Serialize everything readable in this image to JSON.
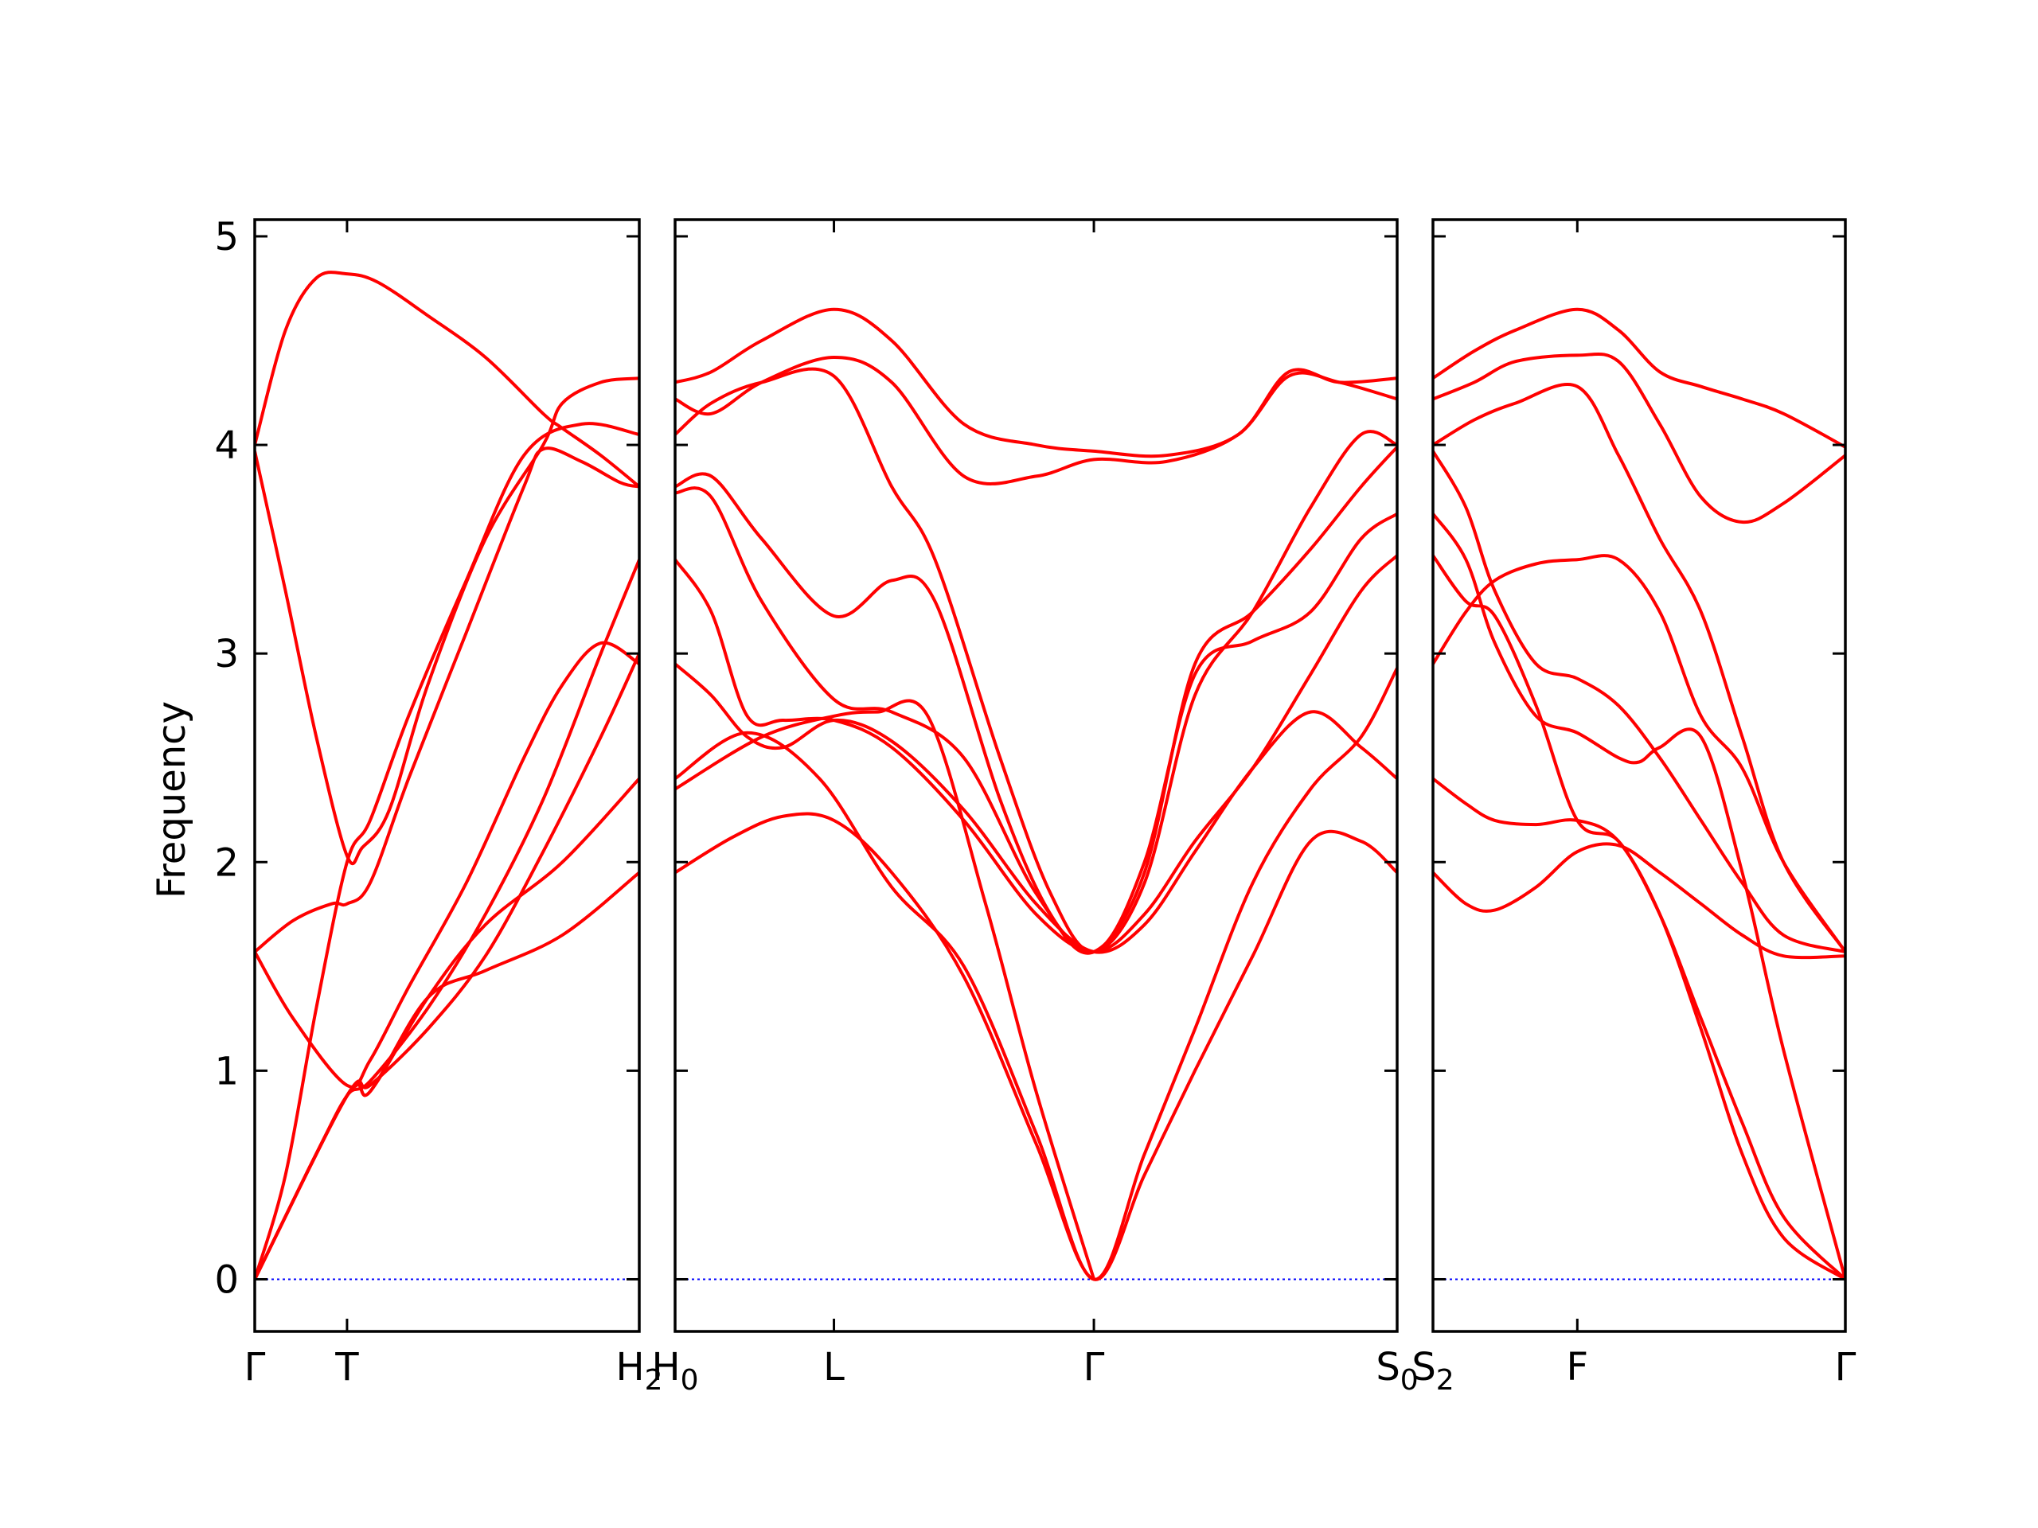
{
  "chart_data": {
    "type": "line",
    "ylabel": "Frequency",
    "ylim": [
      -0.25,
      5.08
    ],
    "yticks": [
      0,
      1,
      2,
      3,
      4,
      5
    ],
    "colors": {
      "bands": "#ff0000",
      "zero_line": "#0000ff",
      "axes": "#000000"
    },
    "grid": false,
    "panels": [
      {
        "xlim": [
          0,
          1
        ],
        "xticks": [
          {
            "x": 0.0,
            "label": "Γ"
          },
          {
            "x": 0.24,
            "label": "T"
          },
          {
            "x": 1.0,
            "label": "H",
            "sub": "2"
          }
        ],
        "series": [
          {
            "x": [
              0,
              0.08,
              0.16,
              0.24,
              0.32,
              0.45,
              0.6,
              0.75,
              0.8,
              0.9,
              1.0
            ],
            "y": [
              4.0,
              4.55,
              4.8,
              4.82,
              4.78,
              4.62,
              4.42,
              4.15,
              4.08,
              3.95,
              3.8
            ]
          },
          {
            "x": [
              0,
              0.08,
              0.16,
              0.24,
              0.28,
              0.35,
              0.45,
              0.6,
              0.75,
              0.8,
              0.9,
              1.0
            ],
            "y": [
              3.97,
              3.3,
              2.6,
              2.03,
              2.07,
              2.25,
              2.85,
              3.55,
              4.0,
              4.2,
              4.3,
              4.32
            ]
          },
          {
            "x": [
              0,
              0.1,
              0.2,
              0.24,
              0.3,
              0.4,
              0.55,
              0.7,
              0.75,
              0.85,
              0.95,
              1.0
            ],
            "y": [
              1.57,
              1.72,
              1.8,
              1.8,
              1.9,
              2.4,
              3.1,
              3.8,
              3.98,
              3.92,
              3.82,
              3.8
            ]
          },
          {
            "x": [
              0,
              0.1,
              0.24,
              0.3,
              0.4,
              0.55,
              0.7,
              0.8,
              0.9,
              1.0
            ],
            "y": [
              1.57,
              1.25,
              0.93,
              1.05,
              1.4,
              1.9,
              2.5,
              2.85,
              3.05,
              2.95
            ]
          },
          {
            "x": [
              0,
              0.08,
              0.16,
              0.24,
              0.3,
              0.4,
              0.55,
              0.7,
              0.85,
              1.0
            ],
            "y": [
              0.0,
              0.5,
              1.3,
              2.0,
              2.2,
              2.7,
              3.35,
              3.95,
              4.1,
              4.05
            ]
          },
          {
            "x": [
              0,
              0.08,
              0.16,
              0.24,
              0.3,
              0.45,
              0.6,
              0.75,
              0.9,
              1.0
            ],
            "y": [
              0.0,
              0.3,
              0.6,
              0.88,
              0.95,
              1.3,
              1.75,
              2.3,
              3.0,
              3.45
            ]
          },
          {
            "x": [
              0,
              0.24,
              0.3,
              0.45,
              0.6,
              0.75,
              0.9,
              1.0
            ],
            "y": [
              0.0,
              0.88,
              0.93,
              1.2,
              1.55,
              2.05,
              2.6,
              3.0
            ]
          },
          {
            "x": [
              0,
              0.24,
              0.3,
              0.45,
              0.6,
              0.8,
              1.0
            ],
            "y": [
              0.0,
              0.88,
              0.9,
              1.35,
              1.48,
              1.65,
              1.95
            ]
          },
          {
            "x": [
              0,
              0.24,
              0.3,
              0.45,
              0.6,
              0.8,
              1.0
            ],
            "y": [
              0.0,
              0.88,
              0.9,
              1.35,
              1.7,
              2.0,
              2.4
            ]
          }
        ]
      },
      {
        "xlim": [
          0,
          1
        ],
        "xticks": [
          {
            "x": 0.0,
            "label": "H",
            "sub": "0"
          },
          {
            "x": 0.22,
            "label": "L"
          },
          {
            "x": 0.58,
            "label": "Γ"
          },
          {
            "x": 1.0,
            "label": "S",
            "sub": "0"
          }
        ],
        "series": [
          {
            "x": [
              0,
              0.05,
              0.12,
              0.22,
              0.3,
              0.4,
              0.5,
              0.58,
              0.68,
              0.78,
              0.85,
              0.92,
              1.0
            ],
            "y": [
              4.3,
              4.35,
              4.5,
              4.65,
              4.5,
              4.1,
              4.0,
              3.97,
              3.95,
              4.05,
              4.35,
              4.3,
              4.32
            ]
          },
          {
            "x": [
              0,
              0.05,
              0.12,
              0.22,
              0.3,
              0.4,
              0.5,
              0.58,
              0.68,
              0.78,
              0.85,
              0.92,
              1.0
            ],
            "y": [
              4.22,
              4.15,
              4.3,
              4.42,
              4.3,
              3.85,
              3.85,
              3.93,
              3.92,
              4.05,
              4.33,
              4.3,
              4.22
            ]
          },
          {
            "x": [
              0,
              0.05,
              0.12,
              0.22,
              0.3,
              0.36,
              0.45,
              0.52,
              0.58,
              0.65,
              0.72,
              0.8,
              0.88,
              0.95,
              1.0
            ],
            "y": [
              4.05,
              4.2,
              4.3,
              4.33,
              3.8,
              3.45,
              2.5,
              1.85,
              1.57,
              1.9,
              2.8,
              3.2,
              3.7,
              4.05,
              4.0
            ]
          },
          {
            "x": [
              0,
              0.05,
              0.12,
              0.22,
              0.3,
              0.36,
              0.45,
              0.52,
              0.58,
              0.65,
              0.72,
              0.8,
              0.88,
              0.95,
              1.0
            ],
            "y": [
              3.8,
              3.85,
              3.55,
              3.18,
              3.35,
              3.25,
              2.3,
              1.75,
              1.57,
              1.95,
              2.95,
              3.2,
              3.5,
              3.8,
              3.99
            ]
          },
          {
            "x": [
              0,
              0.05,
              0.12,
              0.22,
              0.3,
              0.4,
              0.5,
              0.58,
              0.65,
              0.72,
              0.8,
              0.88,
              0.95,
              1.0
            ],
            "y": [
              3.77,
              3.75,
              3.25,
              2.78,
              2.72,
              2.5,
              1.85,
              1.57,
              2.0,
              2.9,
              3.06,
              3.2,
              3.55,
              3.67
            ]
          },
          {
            "x": [
              0,
              0.05,
              0.1,
              0.15,
              0.22,
              0.3,
              0.4,
              0.5,
              0.58,
              0.65,
              0.72,
              0.8,
              0.88,
              0.95,
              1.0
            ],
            "y": [
              3.45,
              3.2,
              2.7,
              2.68,
              2.68,
              2.55,
              2.2,
              1.75,
              1.57,
              1.75,
              2.1,
              2.45,
              2.9,
              3.3,
              3.47
            ]
          },
          {
            "x": [
              0,
              0.05,
              0.1,
              0.15,
              0.22,
              0.3,
              0.4,
              0.5,
              0.58,
              0.65,
              0.72,
              0.8,
              0.88,
              0.95,
              1.0
            ],
            "y": [
              2.95,
              2.8,
              2.6,
              2.55,
              2.68,
              2.58,
              2.25,
              1.8,
              1.57,
              1.7,
              2.05,
              2.45,
              2.72,
              2.55,
              2.4
            ]
          },
          {
            "x": [
              0,
              0.1,
              0.2,
              0.3,
              0.4,
              0.5,
              0.58,
              0.65,
              0.72,
              0.8,
              0.88,
              0.95,
              1.0
            ],
            "y": [
              2.4,
              2.62,
              2.4,
              1.88,
              1.5,
              0.7,
              0.0,
              0.6,
              1.2,
              1.9,
              2.35,
              2.6,
              2.93
            ]
          },
          {
            "x": [
              0,
              0.08,
              0.15,
              0.22,
              0.3,
              0.4,
              0.5,
              0.58,
              0.65,
              0.72,
              0.8,
              0.88,
              0.95,
              1.0
            ],
            "y": [
              1.95,
              2.12,
              2.22,
              2.2,
              1.95,
              1.45,
              0.65,
              0.0,
              0.5,
              1.0,
              1.55,
              2.1,
              2.1,
              1.95
            ]
          },
          {
            "x": [
              0,
              0.12,
              0.22,
              0.28,
              0.35,
              0.43,
              0.5,
              0.58
            ],
            "y": [
              2.35,
              2.6,
              2.7,
              2.72,
              2.7,
              1.8,
              0.9,
              0.0
            ]
          }
        ]
      },
      {
        "xlim": [
          0,
          1
        ],
        "xticks": [
          {
            "x": 0.0,
            "label": "S",
            "sub": "2"
          },
          {
            "x": 0.35,
            "label": "F"
          },
          {
            "x": 1.0,
            "label": "Γ"
          }
        ],
        "series": [
          {
            "x": [
              0,
              0.1,
              0.2,
              0.35,
              0.45,
              0.55,
              0.65,
              0.75,
              0.85,
              1.0
            ],
            "y": [
              4.32,
              4.45,
              4.55,
              4.65,
              4.55,
              4.35,
              4.28,
              4.22,
              4.15,
              3.99
            ]
          },
          {
            "x": [
              0,
              0.1,
              0.2,
              0.35,
              0.45,
              0.55,
              0.65,
              0.75,
              0.85,
              1.0
            ],
            "y": [
              4.22,
              4.3,
              4.4,
              4.43,
              4.4,
              4.1,
              3.75,
              3.63,
              3.72,
              3.95
            ]
          },
          {
            "x": [
              0,
              0.1,
              0.2,
              0.35,
              0.45,
              0.55,
              0.65,
              0.75,
              0.85,
              1.0
            ],
            "y": [
              4.0,
              4.12,
              4.2,
              4.28,
              3.95,
              3.55,
              3.2,
              2.6,
              2.0,
              1.57
            ]
          },
          {
            "x": [
              0,
              0.08,
              0.15,
              0.25,
              0.35,
              0.45,
              0.55,
              0.65,
              0.75,
              0.85,
              1.0
            ],
            "y": [
              2.95,
              3.2,
              3.35,
              3.43,
              3.45,
              3.45,
              3.2,
              2.7,
              2.45,
              2.0,
              1.57
            ]
          },
          {
            "x": [
              0,
              0.08,
              0.15,
              0.25,
              0.35,
              0.45,
              0.55,
              0.65,
              0.75,
              0.85,
              1.0
            ],
            "y": [
              3.97,
              3.7,
              3.3,
              2.95,
              2.88,
              2.75,
              2.5,
              2.2,
              1.9,
              1.65,
              1.57
            ]
          },
          {
            "x": [
              0,
              0.08,
              0.15,
              0.25,
              0.35,
              0.45,
              0.5,
              0.55,
              0.65,
              0.75,
              0.85,
              1.0
            ],
            "y": [
              3.67,
              3.45,
              3.05,
              2.7,
              2.62,
              2.5,
              2.48,
              2.55,
              2.6,
              1.95,
              1.1,
              0.0
            ]
          },
          {
            "x": [
              0,
              0.08,
              0.15,
              0.25,
              0.35,
              0.45,
              0.55,
              0.65,
              0.75,
              0.85,
              1.0
            ],
            "y": [
              3.47,
              3.25,
              3.18,
              2.75,
              2.2,
              2.1,
              1.75,
              1.2,
              0.6,
              0.2,
              0.0
            ]
          },
          {
            "x": [
              0,
              0.08,
              0.15,
              0.25,
              0.35,
              0.45,
              0.55,
              0.65,
              0.75,
              0.85,
              1.0
            ],
            "y": [
              2.4,
              2.28,
              2.2,
              2.18,
              2.2,
              2.1,
              1.75,
              1.25,
              0.75,
              0.3,
              0.0
            ]
          },
          {
            "x": [
              0,
              0.08,
              0.15,
              0.25,
              0.35,
              0.45,
              0.55,
              0.65,
              0.75,
              0.85,
              1.0
            ],
            "y": [
              1.95,
              1.8,
              1.77,
              1.88,
              2.05,
              2.08,
              1.95,
              1.8,
              1.65,
              1.55,
              1.55
            ]
          }
        ]
      }
    ]
  }
}
